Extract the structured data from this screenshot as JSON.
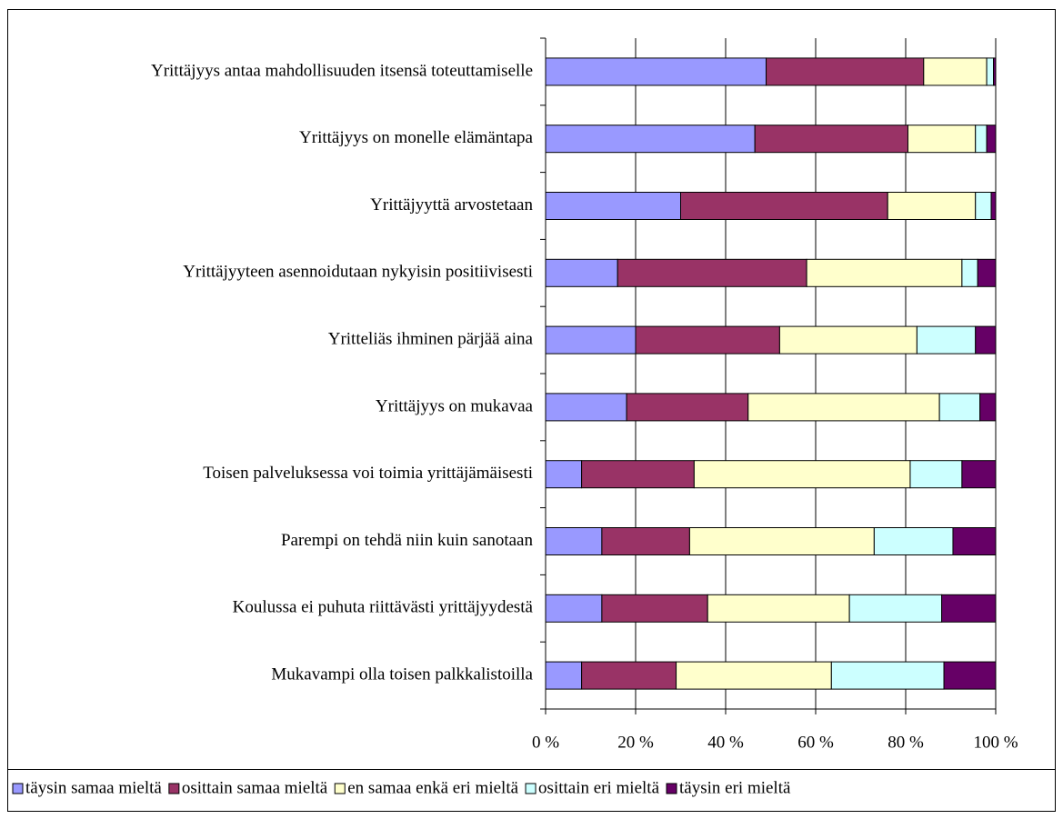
{
  "chart_data": {
    "type": "stacked_barh",
    "categories": [
      "Yrittäjyys antaa mahdollisuuden itsensä toteuttamiselle",
      "Yrittäjyys on monelle elämäntapa",
      "Yrittäjyyttä arvostetaan",
      "Yrittäjyyteen asennoidutaan nykyisin positiivisesti",
      "Yritteliäs ihminen pärjää aina",
      "Yrittäjyys on mukavaa",
      "Toisen palveluksessa voi toimia yrittäjämäisesti",
      "Parempi on tehdä niin kuin sanotaan",
      "Koulussa ei puhuta riittävästi yrittäjyydestä",
      "Mukavampi olla toisen palkkalistoilla"
    ],
    "series": [
      {
        "name": "täysin samaa mieltä",
        "color": "#9999ff",
        "values": [
          49,
          46.5,
          30,
          16,
          20,
          18,
          8,
          12.5,
          12.5,
          8
        ]
      },
      {
        "name": "osittain samaa mieltä",
        "color": "#993366",
        "values": [
          35,
          34,
          46,
          42,
          32,
          27,
          25,
          19.5,
          23.5,
          21
        ]
      },
      {
        "name": "en samaa enkä eri mieltä",
        "color": "#ffffcc",
        "values": [
          14,
          15,
          19.5,
          34.5,
          30.5,
          42.5,
          48,
          41,
          31.5,
          34.5
        ]
      },
      {
        "name": "osittain eri mieltä",
        "color": "#ccffff",
        "values": [
          1.5,
          2.5,
          3.5,
          3.5,
          13,
          9,
          11.5,
          17.5,
          20.5,
          25
        ]
      },
      {
        "name": "täysin eri mieltä",
        "color": "#660066",
        "values": [
          0.5,
          2,
          1,
          4,
          4.5,
          3.5,
          7.5,
          9.5,
          12,
          11.5
        ]
      }
    ],
    "xlim": [
      0,
      100
    ],
    "xticks": [
      {
        "value": 0,
        "label": "0 %"
      },
      {
        "value": 20,
        "label": "20 %"
      },
      {
        "value": 40,
        "label": "40 %"
      },
      {
        "value": 60,
        "label": "60 %"
      },
      {
        "value": 80,
        "label": "80 %"
      },
      {
        "value": 100,
        "label": "100 %"
      }
    ],
    "grid": true,
    "legend": "bottom"
  }
}
